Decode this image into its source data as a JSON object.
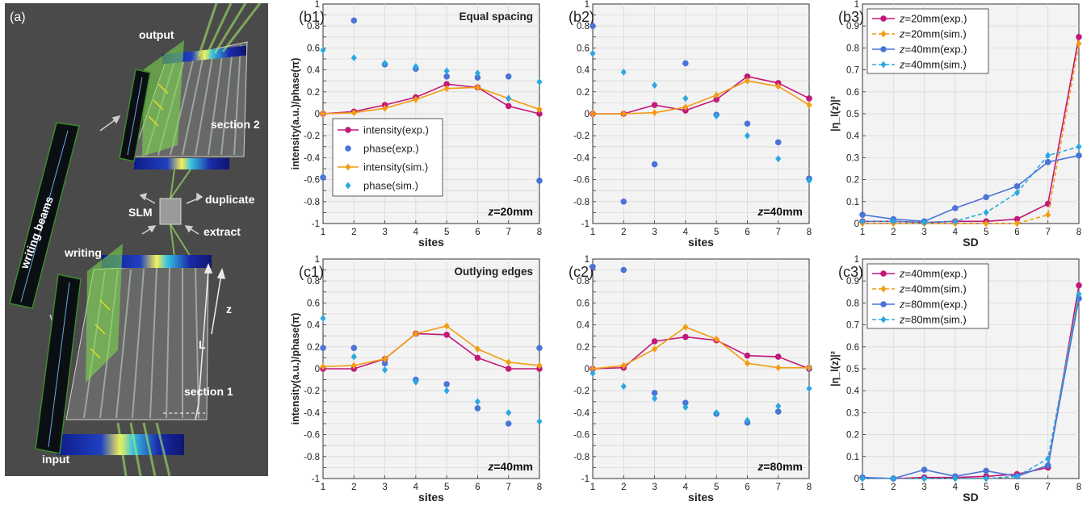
{
  "panel_a": {
    "label": "(a)",
    "labels": {
      "output": "output",
      "section2": "section 2",
      "duplicate": "duplicate",
      "slm": "SLM",
      "extract": "extract",
      "writing": "writing",
      "writing_beams": "writing beams",
      "z": "z",
      "L": "L",
      "section1": "section 1",
      "input": "input"
    }
  },
  "chart_data": [
    {
      "id": "b1",
      "panel_label": "(b1)",
      "type": "line",
      "annotation": "Equal spacing",
      "z_label": "z=20mm",
      "xlabel": "sites",
      "ylabel": "intensity(a.u.)/phase(π)",
      "xlim": [
        1,
        8
      ],
      "ylim": [
        -1,
        1
      ],
      "grid": true,
      "legend": "bottom-left",
      "x": [
        1,
        2,
        3,
        4,
        5,
        6,
        7,
        8
      ],
      "series": [
        {
          "name": "intensity(exp.)",
          "style": "line-dot",
          "color": "#c2187a",
          "values": [
            0,
            0.02,
            0.08,
            0.15,
            0.27,
            0.24,
            0.07,
            0
          ]
        },
        {
          "name": "phase(exp.)",
          "style": "dot",
          "color": "#4a74d8",
          "points": [
            [
              1,
              -0.58
            ],
            [
              2,
              0.85
            ],
            [
              3,
              0.45
            ],
            [
              4,
              0.41
            ],
            [
              5,
              0.34
            ],
            [
              6,
              0.33
            ],
            [
              7,
              0.34
            ],
            [
              8,
              -0.61
            ]
          ]
        },
        {
          "name": "intensity(sim.)",
          "style": "line-diamond",
          "color": "#f39c12",
          "values": [
            0,
            0.01,
            0.05,
            0.13,
            0.23,
            0.24,
            0.14,
            0.04
          ]
        },
        {
          "name": "phase(sim.)",
          "style": "diamond",
          "color": "#2aa8e0",
          "points": [
            [
              1,
              0.58
            ],
            [
              2,
              0.51
            ],
            [
              3,
              0.46
            ],
            [
              4,
              0.43
            ],
            [
              5,
              0.39
            ],
            [
              6,
              0.37
            ],
            [
              7,
              0.14
            ],
            [
              8,
              0.29
            ]
          ]
        }
      ]
    },
    {
      "id": "b2",
      "panel_label": "(b2)",
      "type": "line",
      "z_label": "z=40mm",
      "xlabel": "sites",
      "ylabel": "",
      "xlim": [
        1,
        8
      ],
      "ylim": [
        -1,
        1
      ],
      "grid": true,
      "x": [
        1,
        2,
        3,
        4,
        5,
        6,
        7,
        8
      ],
      "series": [
        {
          "name": "intensity(exp.)",
          "style": "line-dot",
          "color": "#c2187a",
          "values": [
            0,
            0,
            0.08,
            0.03,
            0.13,
            0.34,
            0.28,
            0.14
          ]
        },
        {
          "name": "phase(exp.)",
          "style": "dot",
          "color": "#4a74d8",
          "points": [
            [
              1,
              0.8
            ],
            [
              2,
              -0.8
            ],
            [
              3,
              -0.46
            ],
            [
              4,
              0.46
            ],
            [
              5,
              -0.01
            ],
            [
              6,
              -0.09
            ],
            [
              7,
              -0.26
            ],
            [
              8,
              -0.59
            ]
          ]
        },
        {
          "name": "intensity(sim.)",
          "style": "line-diamond",
          "color": "#f39c12",
          "values": [
            0,
            0,
            0.01,
            0.06,
            0.17,
            0.3,
            0.25,
            0.08
          ]
        },
        {
          "name": "phase(sim.)",
          "style": "diamond",
          "color": "#2aa8e0",
          "points": [
            [
              1,
              0.55
            ],
            [
              2,
              0.38
            ],
            [
              3,
              0.26
            ],
            [
              4,
              0.14
            ],
            [
              5,
              -0.02
            ],
            [
              6,
              -0.2
            ],
            [
              7,
              -0.41
            ],
            [
              8,
              -0.61
            ]
          ]
        }
      ]
    },
    {
      "id": "b3",
      "panel_label": "(b3)",
      "type": "line",
      "xlabel": "SD",
      "ylabel": "|η_l(z)|²",
      "xlim": [
        1,
        8
      ],
      "ylim": [
        0,
        1
      ],
      "grid": true,
      "legend": "top-left",
      "x": [
        1,
        2,
        3,
        4,
        5,
        6,
        7,
        8
      ],
      "series": [
        {
          "name_prefix": "z",
          "name": "=20mm(exp.)",
          "style": "line-dot",
          "color": "#c2187a",
          "values": [
            0.01,
            0.01,
            0.005,
            0.01,
            0.01,
            0.02,
            0.09,
            0.85
          ]
        },
        {
          "name_prefix": "z",
          "name": "=20mm(sim.)",
          "style": "dash-diamond",
          "color": "#f39c12",
          "values": [
            0,
            0,
            0,
            0,
            0,
            0,
            0.04,
            0.82
          ]
        },
        {
          "name_prefix": "z",
          "name": "=40mm(exp.)",
          "style": "line-dot",
          "color": "#4a74d8",
          "values": [
            0.04,
            0.02,
            0.01,
            0.07,
            0.12,
            0.17,
            0.28,
            0.31
          ]
        },
        {
          "name_prefix": "z",
          "name": "=40mm(sim.)",
          "style": "dash-diamond",
          "color": "#2aa8e0",
          "values": [
            0.01,
            0.01,
            0.005,
            0.01,
            0.05,
            0.14,
            0.31,
            0.35
          ]
        }
      ]
    },
    {
      "id": "c1",
      "panel_label": "(c1)",
      "type": "line",
      "annotation": "Outlying edges",
      "z_label": "z=40mm",
      "xlabel": "sites",
      "ylabel": "intensity(a.u.)/phase(π)",
      "xlim": [
        1,
        8
      ],
      "ylim": [
        -1,
        1
      ],
      "grid": true,
      "x": [
        1,
        2,
        3,
        4,
        5,
        6,
        7,
        8
      ],
      "series": [
        {
          "name": "intensity(exp.)",
          "style": "line-dot",
          "color": "#c2187a",
          "values": [
            0,
            0,
            0.09,
            0.32,
            0.31,
            0.1,
            0,
            0
          ]
        },
        {
          "name": "phase(exp.)",
          "style": "dot",
          "color": "#4a74d8",
          "points": [
            [
              1,
              0.19
            ],
            [
              2,
              0.19
            ],
            [
              3,
              0.05
            ],
            [
              4,
              -0.1
            ],
            [
              5,
              -0.14
            ],
            [
              6,
              -0.36
            ],
            [
              7,
              -0.5
            ],
            [
              8,
              0.19
            ]
          ]
        },
        {
          "name": "intensity(sim.)",
          "style": "line-diamond",
          "color": "#f39c12",
          "values": [
            0.02,
            0.03,
            0.09,
            0.32,
            0.39,
            0.18,
            0.06,
            0.03
          ]
        },
        {
          "name": "phase(sim.)",
          "style": "diamond",
          "color": "#2aa8e0",
          "points": [
            [
              1,
              0.46
            ],
            [
              2,
              0.11
            ],
            [
              3,
              -0.01
            ],
            [
              4,
              -0.12
            ],
            [
              5,
              -0.2
            ],
            [
              6,
              -0.3
            ],
            [
              7,
              -0.4
            ],
            [
              8,
              -0.48
            ]
          ]
        }
      ]
    },
    {
      "id": "c2",
      "panel_label": "(c2)",
      "type": "line",
      "z_label": "z=80mm",
      "xlabel": "sites",
      "ylabel": "",
      "xlim": [
        1,
        8
      ],
      "ylim": [
        -1,
        1
      ],
      "grid": true,
      "x": [
        1,
        2,
        3,
        4,
        5,
        6,
        7,
        8
      ],
      "series": [
        {
          "name": "intensity(exp.)",
          "style": "line-dot",
          "color": "#c2187a",
          "values": [
            0,
            0.01,
            0.25,
            0.29,
            0.26,
            0.12,
            0.11,
            0
          ]
        },
        {
          "name": "phase(exp.)",
          "style": "dot",
          "color": "#4a74d8",
          "points": [
            [
              1,
              0.93
            ],
            [
              2,
              0.9
            ],
            [
              3,
              -0.22
            ],
            [
              4,
              -0.31
            ],
            [
              5,
              -0.41
            ],
            [
              6,
              -0.49
            ],
            [
              7,
              -0.39
            ],
            [
              8,
              0.01
            ]
          ]
        },
        {
          "name": "intensity(sim.)",
          "style": "line-diamond",
          "color": "#f39c12",
          "values": [
            0,
            0.03,
            0.18,
            0.38,
            0.27,
            0.05,
            0.01,
            0.01
          ]
        },
        {
          "name": "phase(sim.)",
          "style": "diamond",
          "color": "#2aa8e0",
          "points": [
            [
              1,
              -0.04
            ],
            [
              2,
              -0.16
            ],
            [
              3,
              -0.27
            ],
            [
              4,
              -0.35
            ],
            [
              5,
              -0.4
            ],
            [
              6,
              -0.47
            ],
            [
              7,
              -0.34
            ],
            [
              8,
              -0.18
            ]
          ]
        }
      ]
    },
    {
      "id": "c3",
      "panel_label": "(c3)",
      "type": "line",
      "xlabel": "SD",
      "ylabel": "|η_l(z)|²",
      "xlim": [
        1,
        8
      ],
      "ylim": [
        0,
        1
      ],
      "grid": true,
      "legend": "top-left",
      "x": [
        1,
        2,
        3,
        4,
        5,
        6,
        7,
        8
      ],
      "series": [
        {
          "name_prefix": "z",
          "name": "=40mm(exp.)",
          "style": "line-dot",
          "color": "#c2187a",
          "values": [
            0.005,
            0,
            0.005,
            0.005,
            0.01,
            0.02,
            0.05,
            0.88
          ]
        },
        {
          "name_prefix": "z",
          "name": "=40mm(sim.)",
          "style": "dash-diamond",
          "color": "#f39c12",
          "values": [
            0,
            0,
            0,
            0,
            0,
            0.01,
            0.06,
            0.84
          ]
        },
        {
          "name_prefix": "z",
          "name": "=80mm(exp.)",
          "style": "line-dot",
          "color": "#4a74d8",
          "values": [
            0.005,
            0,
            0.04,
            0.01,
            0.035,
            0.01,
            0.06,
            0.82
          ]
        },
        {
          "name_prefix": "z",
          "name": "=80mm(sim.)",
          "style": "dash-diamond",
          "color": "#2aa8e0",
          "values": [
            0,
            0,
            0,
            0,
            0,
            0.01,
            0.09,
            0.84
          ]
        }
      ]
    }
  ]
}
